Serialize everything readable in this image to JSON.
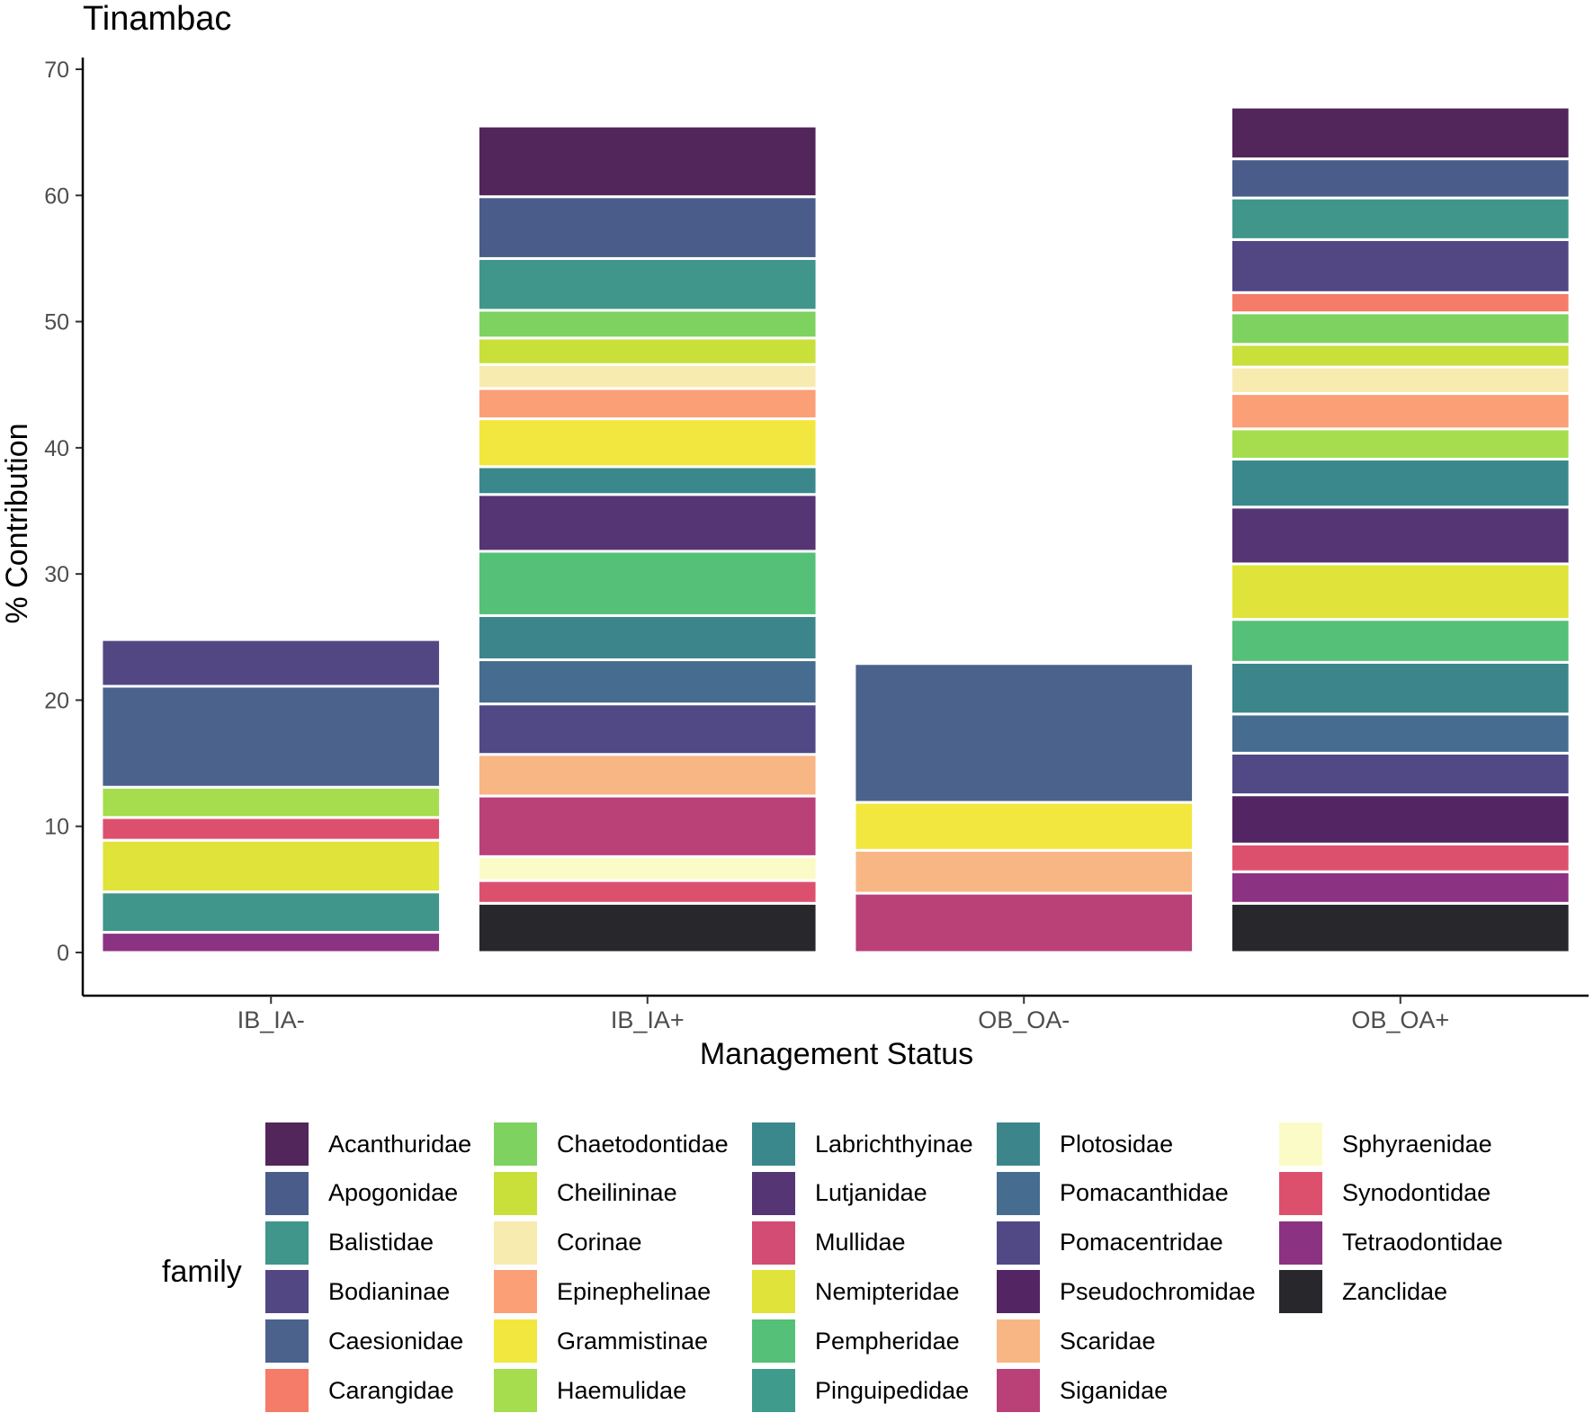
{
  "chart_data": {
    "type": "bar",
    "stacked": true,
    "title": "Tinambac",
    "xlabel": "Management Status",
    "ylabel": "% Contribution",
    "ylim": [
      0,
      70
    ],
    "yticks": [
      0,
      10,
      20,
      30,
      40,
      50,
      60,
      70
    ],
    "categories": [
      "IB_IA-",
      "IB_IA+",
      "OB_OA-",
      "OB_OA+"
    ],
    "legend_title": "family",
    "legend_position": "bottom",
    "families": [
      {
        "name": "Acanthuridae",
        "color": "#52265a"
      },
      {
        "name": "Apogonidae",
        "color": "#4a5d8a"
      },
      {
        "name": "Balistidae",
        "color": "#40968b"
      },
      {
        "name": "Bodianinae",
        "color": "#524783"
      },
      {
        "name": "Caesionidae",
        "color": "#4a628c"
      },
      {
        "name": "Carangidae",
        "color": "#f47c68"
      },
      {
        "name": "Chaetodontidae",
        "color": "#7ed260"
      },
      {
        "name": "Cheilininae",
        "color": "#c9df3a"
      },
      {
        "name": "Corinae",
        "color": "#f8ebb0"
      },
      {
        "name": "Epinephelinae",
        "color": "#fb9f77"
      },
      {
        "name": "Grammistinae",
        "color": "#f2e73e"
      },
      {
        "name": "Haemulidae",
        "color": "#a5dd4f"
      },
      {
        "name": "Labrichthyinae",
        "color": "#3a888c"
      },
      {
        "name": "Lutjanidae",
        "color": "#553574"
      },
      {
        "name": "Mullidae",
        "color": "#d24c73"
      },
      {
        "name": "Nemipteridae",
        "color": "#dfe33a"
      },
      {
        "name": "Pempheridae",
        "color": "#55c077"
      },
      {
        "name": "Pinguipedidae",
        "color": "#3f9b8c"
      },
      {
        "name": "Plotosidae",
        "color": "#3c868b"
      },
      {
        "name": "Pomacanthidae",
        "color": "#466c90"
      },
      {
        "name": "Pomacentridae",
        "color": "#514986"
      },
      {
        "name": "Pseudochromidae",
        "color": "#532563"
      },
      {
        "name": "Scaridae",
        "color": "#f8b684"
      },
      {
        "name": "Siganidae",
        "color": "#b94178"
      },
      {
        "name": "Sphyraenidae",
        "color": "#fbfbc8"
      },
      {
        "name": "Synodontidae",
        "color": "#dc506e"
      },
      {
        "name": "Tetraodontidae",
        "color": "#8c3282"
      },
      {
        "name": "Zanclidae",
        "color": "#27272c"
      }
    ],
    "stacks": [
      {
        "category": "IB_IA-",
        "segments": [
          {
            "family": "Tetraodontidae",
            "value": 1.6
          },
          {
            "family": "Balistidae",
            "value": 3.2
          },
          {
            "family": "Nemipteridae",
            "value": 4.1
          },
          {
            "family": "Synodontidae",
            "value": 1.8
          },
          {
            "family": "Haemulidae",
            "value": 2.4
          },
          {
            "family": "Caesionidae",
            "value": 8.0
          },
          {
            "family": "Bodianinae",
            "value": 3.7
          }
        ]
      },
      {
        "category": "IB_IA+",
        "segments": [
          {
            "family": "Zanclidae",
            "value": 3.9
          },
          {
            "family": "Synodontidae",
            "value": 1.8
          },
          {
            "family": "Sphyraenidae",
            "value": 1.9
          },
          {
            "family": "Siganidae",
            "value": 4.8
          },
          {
            "family": "Scaridae",
            "value": 3.3
          },
          {
            "family": "Pomacentridae",
            "value": 4.0
          },
          {
            "family": "Pomacanthidae",
            "value": 3.5
          },
          {
            "family": "Plotosidae",
            "value": 3.5
          },
          {
            "family": "Pempheridae",
            "value": 5.1
          },
          {
            "family": "Lutjanidae",
            "value": 4.5
          },
          {
            "family": "Labrichthyinae",
            "value": 2.2
          },
          {
            "family": "Grammistinae",
            "value": 3.8
          },
          {
            "family": "Epinephelinae",
            "value": 2.4
          },
          {
            "family": "Corinae",
            "value": 1.9
          },
          {
            "family": "Cheilininae",
            "value": 2.1
          },
          {
            "family": "Chaetodontidae",
            "value": 2.2
          },
          {
            "family": "Balistidae",
            "value": 4.1
          },
          {
            "family": "Apogonidae",
            "value": 4.9
          },
          {
            "family": "Acanthuridae",
            "value": 5.6
          }
        ]
      },
      {
        "category": "OB_OA-",
        "segments": [
          {
            "family": "Siganidae",
            "value": 4.7
          },
          {
            "family": "Scaridae",
            "value": 3.4
          },
          {
            "family": "Grammistinae",
            "value": 3.8
          },
          {
            "family": "Caesionidae",
            "value": 11.0
          }
        ]
      },
      {
        "category": "OB_OA+",
        "segments": [
          {
            "family": "Zanclidae",
            "value": 3.9
          },
          {
            "family": "Tetraodontidae",
            "value": 2.5
          },
          {
            "family": "Synodontidae",
            "value": 2.2
          },
          {
            "family": "Pseudochromidae",
            "value": 3.9
          },
          {
            "family": "Pomacentridae",
            "value": 3.3
          },
          {
            "family": "Pomacanthidae",
            "value": 3.1
          },
          {
            "family": "Plotosidae",
            "value": 4.1
          },
          {
            "family": "Pempheridae",
            "value": 3.4
          },
          {
            "family": "Nemipteridae",
            "value": 4.4
          },
          {
            "family": "Lutjanidae",
            "value": 4.5
          },
          {
            "family": "Labrichthyinae",
            "value": 3.8
          },
          {
            "family": "Haemulidae",
            "value": 2.4
          },
          {
            "family": "Epinephelinae",
            "value": 2.8
          },
          {
            "family": "Corinae",
            "value": 2.1
          },
          {
            "family": "Cheilininae",
            "value": 1.8
          },
          {
            "family": "Chaetodontidae",
            "value": 2.5
          },
          {
            "family": "Carangidae",
            "value": 1.6
          },
          {
            "family": "Bodianinae",
            "value": 4.2
          },
          {
            "family": "Balistidae",
            "value": 3.3
          },
          {
            "family": "Apogonidae",
            "value": 3.1
          },
          {
            "family": "Acanthuridae",
            "value": 4.1
          }
        ]
      }
    ]
  }
}
